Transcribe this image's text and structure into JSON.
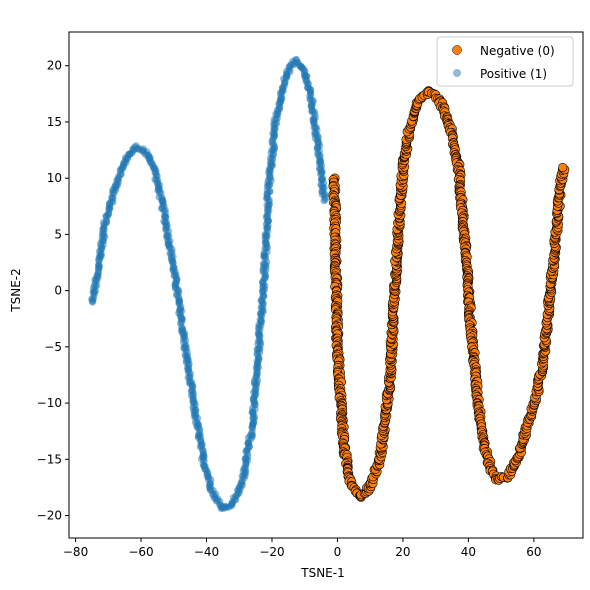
{
  "chart_data": {
    "type": "scatter",
    "title": "",
    "xlabel": "TSNE-1",
    "ylabel": "TSNE-2",
    "xlim": [
      -82,
      75
    ],
    "ylim": [
      -22,
      23
    ],
    "xticks": [
      -80,
      -60,
      -40,
      -20,
      0,
      20,
      40,
      60
    ],
    "yticks": [
      -20,
      -15,
      -10,
      -5,
      0,
      5,
      10,
      15,
      20
    ],
    "grid": false,
    "legend": "top-right",
    "series": [
      {
        "name": "Negative (0)",
        "color": "#ff7f0e",
        "edgecolor": "#000000",
        "curve": [
          [
            -1,
            10
          ],
          [
            0,
            -5
          ],
          [
            2,
            -14
          ],
          [
            4,
            -17
          ],
          [
            7,
            -18.3
          ],
          [
            10,
            -17.5
          ],
          [
            13,
            -15
          ],
          [
            16,
            -8
          ],
          [
            18,
            3
          ],
          [
            20,
            11
          ],
          [
            22,
            14.5
          ],
          [
            25,
            17
          ],
          [
            28,
            17.8
          ],
          [
            31,
            17
          ],
          [
            34,
            15
          ],
          [
            37,
            11
          ],
          [
            39,
            4
          ],
          [
            41,
            -4
          ],
          [
            43,
            -10
          ],
          [
            45,
            -14
          ],
          [
            47,
            -16
          ],
          [
            49,
            -16.8
          ],
          [
            52,
            -16.5
          ],
          [
            55,
            -15
          ],
          [
            58,
            -12
          ],
          [
            61,
            -9
          ],
          [
            63,
            -6
          ],
          [
            65,
            0
          ],
          [
            66.5,
            4
          ],
          [
            68,
            9
          ],
          [
            69,
            11
          ]
        ]
      },
      {
        "name": "Positive (1)",
        "color": "#1f77b4",
        "alpha": 0.5,
        "curve": [
          [
            -75,
            -1
          ],
          [
            -73,
            2
          ],
          [
            -71,
            6
          ],
          [
            -68,
            9
          ],
          [
            -65,
            11.5
          ],
          [
            -62,
            12.8
          ],
          [
            -59,
            12.5
          ],
          [
            -56,
            11
          ],
          [
            -53,
            7
          ],
          [
            -50,
            2
          ],
          [
            -47,
            -4
          ],
          [
            -44,
            -10
          ],
          [
            -41,
            -15
          ],
          [
            -38,
            -18
          ],
          [
            -35,
            -19.5
          ],
          [
            -32,
            -19
          ],
          [
            -29,
            -17
          ],
          [
            -26,
            -12
          ],
          [
            -24,
            -5
          ],
          [
            -22,
            3
          ],
          [
            -21,
            9
          ],
          [
            -19,
            15
          ],
          [
            -16,
            19
          ],
          [
            -13,
            20.5
          ],
          [
            -10,
            19.5
          ],
          [
            -8,
            17
          ],
          [
            -6,
            13
          ],
          [
            -4,
            8
          ]
        ]
      }
    ]
  }
}
